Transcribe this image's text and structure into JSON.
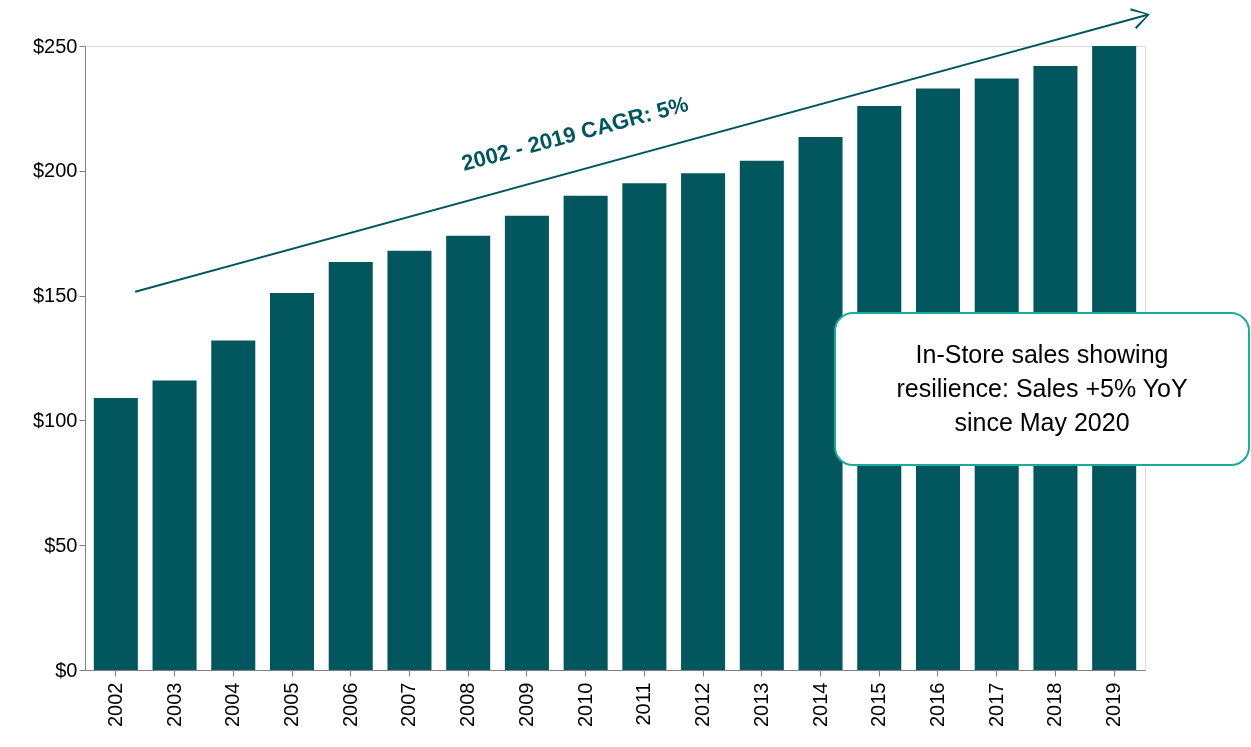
{
  "chart_data": {
    "type": "bar",
    "categories": [
      "2002",
      "2003",
      "2004",
      "2005",
      "2006",
      "2007",
      "2008",
      "2009",
      "2010",
      "2011",
      "2012",
      "2013",
      "2014",
      "2015",
      "2016",
      "2017",
      "2018",
      "2019"
    ],
    "values": [
      109,
      116,
      132,
      151,
      163.5,
      168,
      174,
      182,
      190,
      195,
      199,
      204,
      213.5,
      226,
      233,
      237,
      242,
      250
    ],
    "color": "#02575f",
    "ylim": [
      0,
      250
    ],
    "yticks": [
      {
        "value": 0,
        "label": "$0"
      },
      {
        "value": 50,
        "label": "$50"
      },
      {
        "value": 100,
        "label": "$100"
      },
      {
        "value": 150,
        "label": "$150"
      },
      {
        "value": 200,
        "label": "$200"
      },
      {
        "value": 250,
        "label": "$250"
      }
    ],
    "grid": false,
    "annotations": [
      "2002 - 2019 CAGR: 5%",
      "In-Store sales showing resilience: Sales +5% YoY since May 2020"
    ]
  }
}
